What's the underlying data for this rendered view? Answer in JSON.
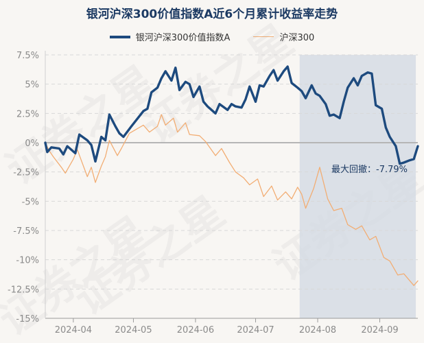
{
  "chart_data": {
    "type": "line",
    "title": "银河沪深300价值指数A近6个月累计收益率走势",
    "xlabel": "",
    "ylabel": "",
    "ylim": [
      -15,
      7.5
    ],
    "yticks": [
      "7.5%",
      "5%",
      "2.5%",
      "0%",
      "-2.5%",
      "-5%",
      "-7.5%",
      "-10%",
      "-12.5%",
      "-15%"
    ],
    "ytick_values": [
      7.5,
      5,
      2.5,
      0,
      -2.5,
      -5,
      -7.5,
      -10,
      -12.5,
      -15
    ],
    "xlim": [
      "2024-03-18",
      "2024-09-20"
    ],
    "xticks": [
      "2024-04",
      "2024-05",
      "2024-06",
      "2024-07",
      "2024-08",
      "2024-09"
    ],
    "xtick_dates": [
      "2024-04-01",
      "2024-05-01",
      "2024-06-01",
      "2024-07-01",
      "2024-08-01",
      "2024-09-01"
    ],
    "grid": true,
    "legend_position": "top",
    "max_drawdown": {
      "label": "最大回撤：-7.79%",
      "start": "2024-07-23",
      "end": "2024-09-19"
    },
    "watermark": "证券之星",
    "series": [
      {
        "name": "银河沪深300价值指数A",
        "color": "#1d4a7e",
        "x": [
          "2024-03-18",
          "2024-03-19",
          "2024-03-21",
          "2024-03-25",
          "2024-03-27",
          "2024-03-29",
          "2024-04-02",
          "2024-04-04",
          "2024-04-08",
          "2024-04-10",
          "2024-04-12",
          "2024-04-15",
          "2024-04-17",
          "2024-04-19",
          "2024-04-22",
          "2024-04-24",
          "2024-04-26",
          "2024-04-30",
          "2024-05-06",
          "2024-05-08",
          "2024-05-10",
          "2024-05-13",
          "2024-05-15",
          "2024-05-17",
          "2024-05-20",
          "2024-05-22",
          "2024-05-24",
          "2024-05-27",
          "2024-05-29",
          "2024-05-31",
          "2024-06-03",
          "2024-06-05",
          "2024-06-07",
          "2024-06-11",
          "2024-06-13",
          "2024-06-17",
          "2024-06-19",
          "2024-06-21",
          "2024-06-24",
          "2024-06-26",
          "2024-06-28",
          "2024-07-01",
          "2024-07-03",
          "2024-07-05",
          "2024-07-08",
          "2024-07-10",
          "2024-07-12",
          "2024-07-15",
          "2024-07-17",
          "2024-07-19",
          "2024-07-22",
          "2024-07-24",
          "2024-07-26",
          "2024-07-29",
          "2024-07-31",
          "2024-08-02",
          "2024-08-05",
          "2024-08-07",
          "2024-08-09",
          "2024-08-12",
          "2024-08-14",
          "2024-08-16",
          "2024-08-19",
          "2024-08-21",
          "2024-08-23",
          "2024-08-26",
          "2024-08-28",
          "2024-08-30",
          "2024-09-02",
          "2024-09-04",
          "2024-09-06",
          "2024-09-09",
          "2024-09-11",
          "2024-09-13",
          "2024-09-16",
          "2024-09-18",
          "2024-09-20"
        ],
        "values": [
          0.0,
          -0.8,
          -0.4,
          -0.5,
          -1.0,
          -0.3,
          -0.9,
          0.7,
          0.2,
          -0.2,
          -1.6,
          0.5,
          0.2,
          2.4,
          1.4,
          0.8,
          0.5,
          1.4,
          2.7,
          2.9,
          4.3,
          4.7,
          5.5,
          6.1,
          5.3,
          6.4,
          4.5,
          5.2,
          5.0,
          3.9,
          4.8,
          3.5,
          3.1,
          2.5,
          3.3,
          2.8,
          3.3,
          3.1,
          3.0,
          3.7,
          4.8,
          3.5,
          4.9,
          4.8,
          5.7,
          6.2,
          5.3,
          6.1,
          6.5,
          5.1,
          4.7,
          4.4,
          3.8,
          4.9,
          4.2,
          4.0,
          3.3,
          2.3,
          2.4,
          2.1,
          3.5,
          4.7,
          5.5,
          4.9,
          5.7,
          6.0,
          5.9,
          3.2,
          2.9,
          1.3,
          0.5,
          -0.3,
          -1.8,
          -1.7,
          -1.5,
          -1.4,
          -0.3
        ]
      },
      {
        "name": "沪深300",
        "color": "#f2ad73",
        "x": [
          "2024-03-18",
          "2024-03-20",
          "2024-03-22",
          "2024-03-26",
          "2024-03-28",
          "2024-04-01",
          "2024-04-03",
          "2024-04-08",
          "2024-04-10",
          "2024-04-12",
          "2024-04-15",
          "2024-04-17",
          "2024-04-19",
          "2024-04-23",
          "2024-04-25",
          "2024-04-29",
          "2024-05-06",
          "2024-05-09",
          "2024-05-13",
          "2024-05-15",
          "2024-05-17",
          "2024-05-21",
          "2024-05-23",
          "2024-05-27",
          "2024-05-29",
          "2024-06-03",
          "2024-06-06",
          "2024-06-11",
          "2024-06-14",
          "2024-06-18",
          "2024-06-21",
          "2024-06-25",
          "2024-06-28",
          "2024-07-02",
          "2024-07-05",
          "2024-07-09",
          "2024-07-12",
          "2024-07-16",
          "2024-07-19",
          "2024-07-22",
          "2024-07-24",
          "2024-07-26",
          "2024-07-30",
          "2024-08-02",
          "2024-08-06",
          "2024-08-09",
          "2024-08-13",
          "2024-08-16",
          "2024-08-20",
          "2024-08-23",
          "2024-08-27",
          "2024-08-30",
          "2024-09-03",
          "2024-09-06",
          "2024-09-10",
          "2024-09-13",
          "2024-09-18",
          "2024-09-20"
        ],
        "values": [
          0.0,
          -0.7,
          -1.2,
          -2.1,
          -2.6,
          -1.4,
          -0.6,
          -2.9,
          -2.1,
          -3.4,
          -2.0,
          -1.2,
          0.2,
          -1.1,
          -0.5,
          0.8,
          1.5,
          0.9,
          1.4,
          2.4,
          1.5,
          2.1,
          0.9,
          1.7,
          0.7,
          0.6,
          0.1,
          -1.1,
          -0.5,
          -1.7,
          -2.5,
          -3.0,
          -3.6,
          -3.1,
          -4.6,
          -3.7,
          -4.9,
          -4.2,
          -4.8,
          -3.8,
          -4.4,
          -5.6,
          -3.9,
          -2.1,
          -4.8,
          -5.8,
          -5.6,
          -7.0,
          -7.4,
          -7.1,
          -8.3,
          -8.0,
          -9.8,
          -10.1,
          -11.3,
          -11.2,
          -12.2,
          -11.8
        ]
      }
    ]
  }
}
